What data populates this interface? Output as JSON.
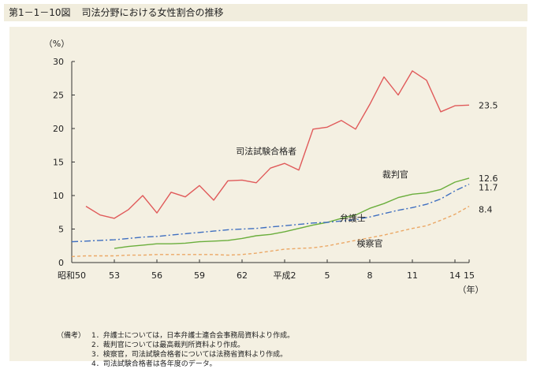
{
  "header": {
    "figure_number": "第1－1－10図",
    "title": "司法分野における女性割合の推移"
  },
  "colors": {
    "page_background": "#ffffff",
    "title_background": "#f1eddd",
    "panel_background": "#f4f0e2",
    "exam_passers": "#e05a5a",
    "judges": "#6aae3c",
    "lawyers": "#3f6fc0",
    "prosecutors": "#eba866",
    "axis": "#333333"
  },
  "chart_data": {
    "type": "line",
    "ylabel": "（%）",
    "xlabel": "（年）",
    "ylim": [
      0,
      30
    ],
    "y_ticks": [
      "0",
      "5",
      "10",
      "15",
      "20",
      "25",
      "30"
    ],
    "x_ticks": [
      {
        "year": 1975,
        "label": "昭和50"
      },
      {
        "year": 1978,
        "label": "53"
      },
      {
        "year": 1981,
        "label": "56"
      },
      {
        "year": 1984,
        "label": "59"
      },
      {
        "year": 1987,
        "label": "62"
      },
      {
        "year": 1990,
        "label": "平成2"
      },
      {
        "year": 1993,
        "label": "5"
      },
      {
        "year": 1996,
        "label": "8"
      },
      {
        "year": 1999,
        "label": "11"
      },
      {
        "year": 2002,
        "label": "14"
      },
      {
        "year": 2003,
        "label": "15"
      }
    ],
    "xlim": [
      1975,
      2003
    ],
    "series": [
      {
        "name": "司法試験合格者",
        "key": "exam_passers",
        "style": "solid",
        "x": [
          1976,
          1977,
          1978,
          1979,
          1980,
          1981,
          1982,
          1983,
          1984,
          1985,
          1986,
          1987,
          1988,
          1989,
          1990,
          1991,
          1992,
          1993,
          1994,
          1995,
          1996,
          1997,
          1998,
          1999,
          2000,
          2001,
          2002,
          2003
        ],
        "values": [
          8.4,
          7.1,
          6.6,
          7.9,
          10.0,
          7.4,
          10.5,
          9.8,
          11.5,
          9.3,
          12.2,
          12.3,
          11.9,
          14.1,
          14.8,
          13.8,
          19.9,
          20.2,
          21.2,
          19.9,
          23.6,
          27.7,
          25.0,
          28.6,
          27.2,
          22.5,
          23.4,
          23.5
        ],
        "end_label": "23.5"
      },
      {
        "name": "裁判官",
        "key": "judges",
        "style": "solid",
        "x": [
          1978,
          1979,
          1980,
          1981,
          1982,
          1983,
          1984,
          1985,
          1986,
          1987,
          1988,
          1989,
          1990,
          1991,
          1992,
          1993,
          1994,
          1995,
          1996,
          1997,
          1998,
          1999,
          2000,
          2001,
          2002,
          2003
        ],
        "values": [
          2.1,
          2.4,
          2.6,
          2.8,
          2.8,
          2.9,
          3.1,
          3.2,
          3.3,
          3.6,
          4.0,
          4.2,
          4.6,
          5.1,
          5.6,
          6.0,
          6.6,
          7.1,
          8.1,
          8.8,
          9.7,
          10.2,
          10.4,
          10.9,
          12.0,
          12.6
        ],
        "end_label": "12.6"
      },
      {
        "name": "弁護士",
        "key": "lawyers",
        "style": "dashdot",
        "x": [
          1975,
          1976,
          1977,
          1978,
          1979,
          1980,
          1981,
          1982,
          1983,
          1984,
          1985,
          1986,
          1987,
          1988,
          1989,
          1990,
          1991,
          1992,
          1993,
          1994,
          1995,
          1996,
          1997,
          1998,
          1999,
          2000,
          2001,
          2002,
          2003
        ],
        "values": [
          3.1,
          3.2,
          3.3,
          3.4,
          3.6,
          3.8,
          3.9,
          4.1,
          4.3,
          4.5,
          4.7,
          4.9,
          5.0,
          5.1,
          5.3,
          5.5,
          5.7,
          5.9,
          6.0,
          6.2,
          6.4,
          6.8,
          7.3,
          7.8,
          8.2,
          8.7,
          9.5,
          10.7,
          11.7
        ],
        "end_label": "11.7"
      },
      {
        "name": "検察官",
        "key": "prosecutors",
        "style": "dashed",
        "x": [
          1975,
          1976,
          1977,
          1978,
          1979,
          1980,
          1981,
          1982,
          1983,
          1984,
          1985,
          1986,
          1987,
          1988,
          1989,
          1990,
          1991,
          1992,
          1993,
          1994,
          1995,
          1996,
          1997,
          1998,
          1999,
          2000,
          2001,
          2002,
          2003
        ],
        "values": [
          0.9,
          1.0,
          1.0,
          1.0,
          1.1,
          1.1,
          1.2,
          1.2,
          1.2,
          1.2,
          1.2,
          1.1,
          1.2,
          1.4,
          1.7,
          2.0,
          2.1,
          2.2,
          2.5,
          2.9,
          3.3,
          3.7,
          4.1,
          4.6,
          5.1,
          5.5,
          6.3,
          7.2,
          8.4
        ],
        "end_label": "8.4"
      }
    ],
    "series_labels": [
      {
        "key": "exam_passers",
        "text": "司法試験合格者",
        "at_year": 1988.7,
        "at_value": 16.2
      },
      {
        "key": "judges",
        "text": "裁判官",
        "at_year": 1997.8,
        "at_value": 12.7
      },
      {
        "key": "lawyers",
        "text": "弁護士",
        "at_year": 1994.8,
        "at_value": 6.2
      },
      {
        "key": "prosecutors",
        "text": "検察官",
        "at_year": 1996.0,
        "at_value": 2.4
      }
    ]
  },
  "notes": {
    "heading": "（備考）",
    "items": [
      "1．弁護士については，日本弁護士連合会事務局資料より作成。",
      "2．裁判官については最高裁判所資料より作成。",
      "3．検察官，司法試験合格者については法務省資料より作成。",
      "4．司法試験合格者は各年度のデータ。"
    ]
  }
}
